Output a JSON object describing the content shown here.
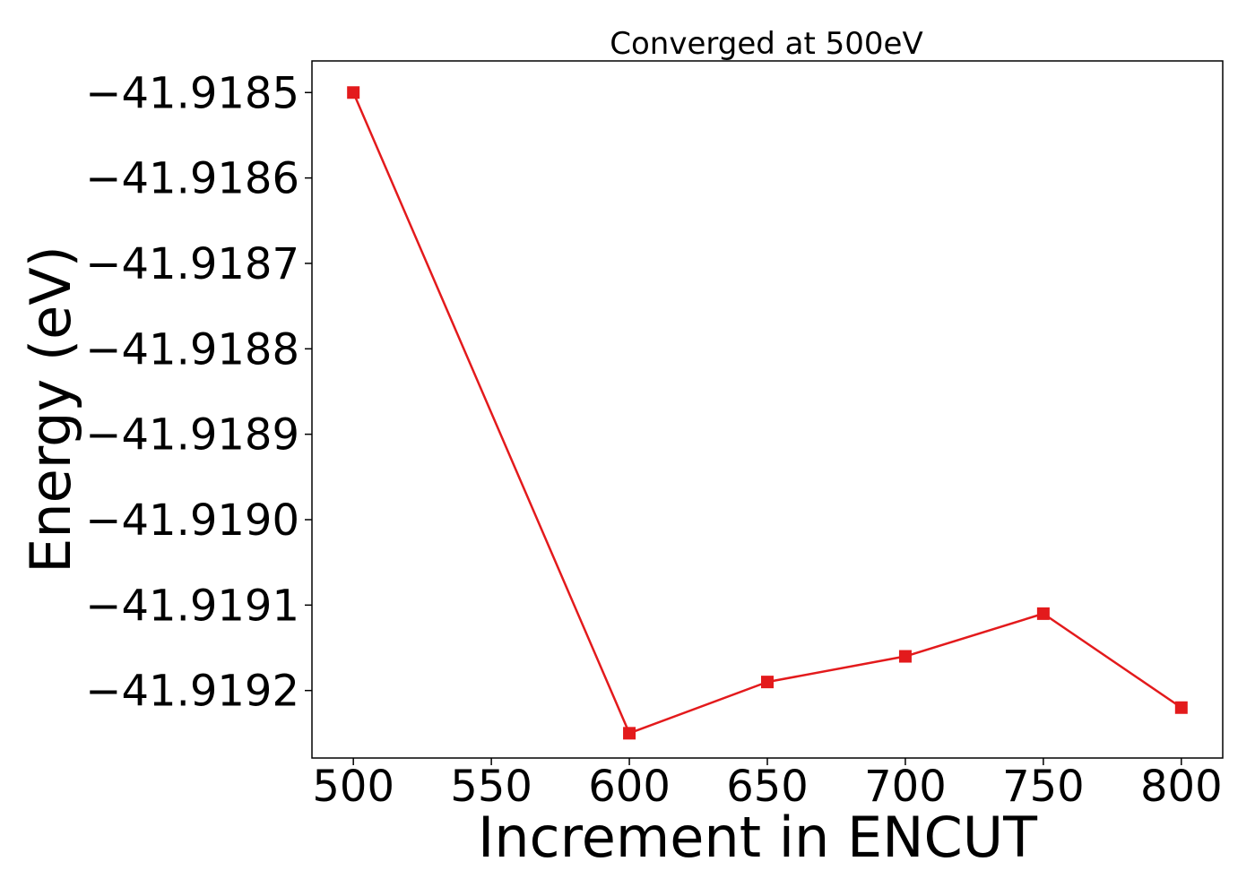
{
  "chart_data": {
    "type": "line",
    "title": "Converged at 500eV",
    "xlabel": "Increment in ENCUT",
    "ylabel": "Energy (eV)",
    "x": [
      500,
      600,
      650,
      700,
      750,
      800
    ],
    "series": [
      {
        "values": [
          -41.9185,
          -41.91925,
          -41.91919,
          -41.91916,
          -41.91911,
          -41.91922
        ],
        "color": "#e31a1c",
        "marker": "square"
      }
    ],
    "xticks": [
      500,
      550,
      600,
      650,
      700,
      750,
      800
    ],
    "xtick_labels": [
      "500",
      "550",
      "600",
      "650",
      "700",
      "750",
      "800"
    ],
    "yticks": [
      -41.9185,
      -41.9186,
      -41.9187,
      -41.9188,
      -41.9189,
      -41.919,
      -41.9191,
      -41.9192
    ],
    "ytick_labels": [
      "−41.9185",
      "−41.9186",
      "−41.9187",
      "−41.9188",
      "−41.9189",
      "−41.9190",
      "−41.9191",
      "−41.9192"
    ],
    "xlim": [
      485,
      815
    ],
    "ylim": [
      -41.919279,
      -41.918463
    ],
    "grid": false,
    "legend": "none"
  }
}
